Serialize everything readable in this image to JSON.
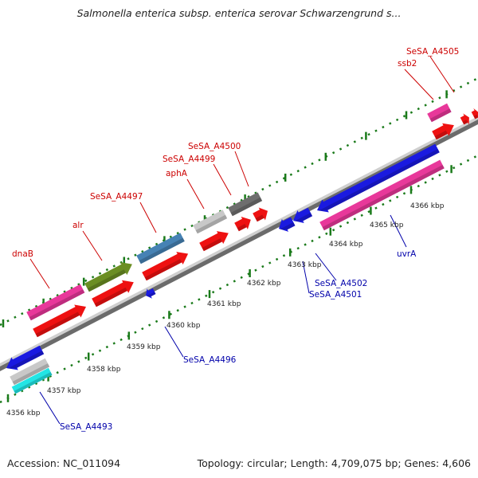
{
  "title": "Salmonella enterica subsp. enterica serovar Schwarzengrund s...",
  "footer": {
    "accession": "Accession: NC_011094",
    "topology": "Topology: circular; Length: 4,709,075 bp; Genes: 4,606"
  },
  "kbp_labels": [
    "4356 kbp",
    "4357 kbp",
    "4358 kbp",
    "4359 kbp",
    "4360 kbp",
    "4361 kbp",
    "4362 kbp",
    "4363 kbp",
    "4364 kbp",
    "4365 kbp",
    "4366 kbp"
  ],
  "gene_labels": {
    "dnaB": "dnaB",
    "alr": "alr",
    "SeSA_A4497": "SeSA_A4497",
    "aphA": "aphA",
    "SeSA_A4499": "SeSA_A4499",
    "SeSA_A4500": "SeSA_A4500",
    "ssb2": "ssb2",
    "SeSA_A4505": "SeSA_A4505",
    "SeSA_A4496": "SeSA_A4496",
    "SeSA_A4493": "SeSA_A4493",
    "SeSA_A4502": "SeSA_A4502",
    "SeSA_A4501": "SeSA_A4501",
    "uvrA": "uvrA"
  },
  "colors": {
    "forward_label": "#cc0000",
    "reverse_label": "#0000aa",
    "tick": "#1a7a1a"
  }
}
